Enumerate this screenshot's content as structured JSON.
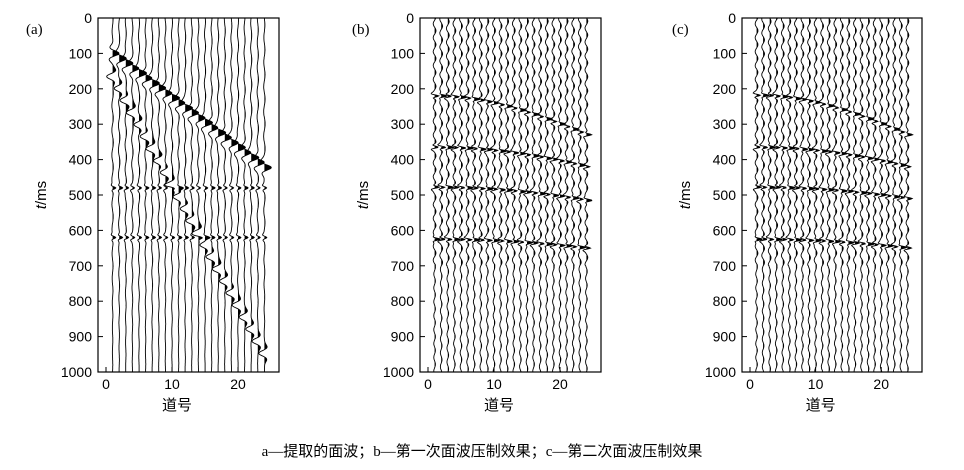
{
  "chart_data": [
    {
      "type": "line",
      "panel_label": "(a)",
      "ylabel_italic": "t",
      "ylabel_unit": "/ms",
      "xlabel": "道号",
      "xlim": [
        0,
        25
      ],
      "ylim": [
        0,
        1000
      ],
      "y_inverted": true,
      "xticks": [
        "0",
        "10",
        "20"
      ],
      "yticks": [
        "0",
        "100",
        "200",
        "300",
        "400",
        "500",
        "600",
        "700",
        "800",
        "900",
        "1000"
      ],
      "traces": 24,
      "grid": false,
      "events": [
        {
          "t_start": 100,
          "slope_ms_per_trace": 14,
          "polarity": "filled"
        },
        {
          "t_start": 165,
          "slope_ms_per_trace": 34,
          "polarity": "open"
        }
      ],
      "reflections": [
        480,
        620
      ]
    },
    {
      "type": "line",
      "panel_label": "(b)",
      "ylabel_italic": "t",
      "ylabel_unit": "/ms",
      "xlabel": "道号",
      "xlim": [
        0,
        25
      ],
      "ylim": [
        0,
        1000
      ],
      "y_inverted": true,
      "xticks": [
        "0",
        "10",
        "20"
      ],
      "yticks": [
        "0",
        "100",
        "200",
        "300",
        "400",
        "500",
        "600",
        "700",
        "800",
        "900",
        "1000"
      ],
      "traces": 24,
      "grid": false,
      "reflections": [
        {
          "t0": 220,
          "t_end": 330
        },
        {
          "t0": 365,
          "t_end": 420
        },
        {
          "t0": 478,
          "t_end": 515
        },
        {
          "t0": 625,
          "t_end": 650
        }
      ]
    },
    {
      "type": "line",
      "panel_label": "(c)",
      "ylabel_italic": "t",
      "ylabel_unit": "/ms",
      "xlabel": "道号",
      "xlim": [
        0,
        25
      ],
      "ylim": [
        0,
        1000
      ],
      "y_inverted": true,
      "xticks": [
        "0",
        "10",
        "20"
      ],
      "yticks": [
        "0",
        "100",
        "200",
        "300",
        "400",
        "500",
        "600",
        "700",
        "800",
        "900",
        "1000"
      ],
      "traces": 24,
      "grid": false,
      "reflections": [
        {
          "t0": 218,
          "t_end": 330
        },
        {
          "t0": 365,
          "t_end": 420
        },
        {
          "t0": 478,
          "t_end": 510
        },
        {
          "t0": 625,
          "t_end": 650
        }
      ]
    }
  ],
  "caption": "a—提取的面波；b—第一次面波压制效果；c—第二次面波压制效果"
}
